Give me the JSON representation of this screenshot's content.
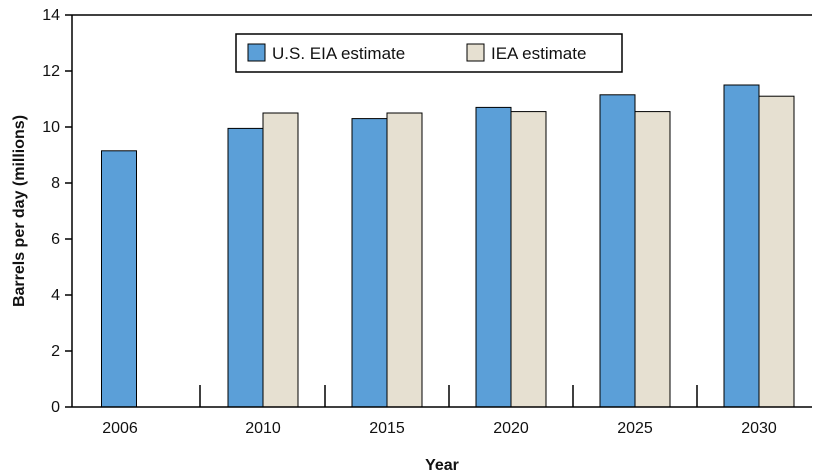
{
  "chart_data": {
    "type": "bar",
    "categories": [
      "2006",
      "2010",
      "2015",
      "2020",
      "2025",
      "2030"
    ],
    "series": [
      {
        "name": "U.S. EIA estimate",
        "color": "#5b9fd8",
        "values": [
          9.15,
          9.95,
          10.3,
          10.7,
          11.15,
          11.5
        ]
      },
      {
        "name": "IEA estimate",
        "color": "#e6e0d1",
        "values": [
          null,
          10.5,
          10.5,
          10.55,
          10.55,
          11.1
        ]
      }
    ],
    "title": "",
    "xlabel": "Year",
    "ylabel": "Barrels per day (millions)",
    "ylim": [
      0,
      14
    ],
    "yticks": [
      0,
      2,
      4,
      6,
      8,
      10,
      12,
      14
    ],
    "grid": false,
    "legend_position": "top-center",
    "bar_outline_color": "#000000"
  }
}
